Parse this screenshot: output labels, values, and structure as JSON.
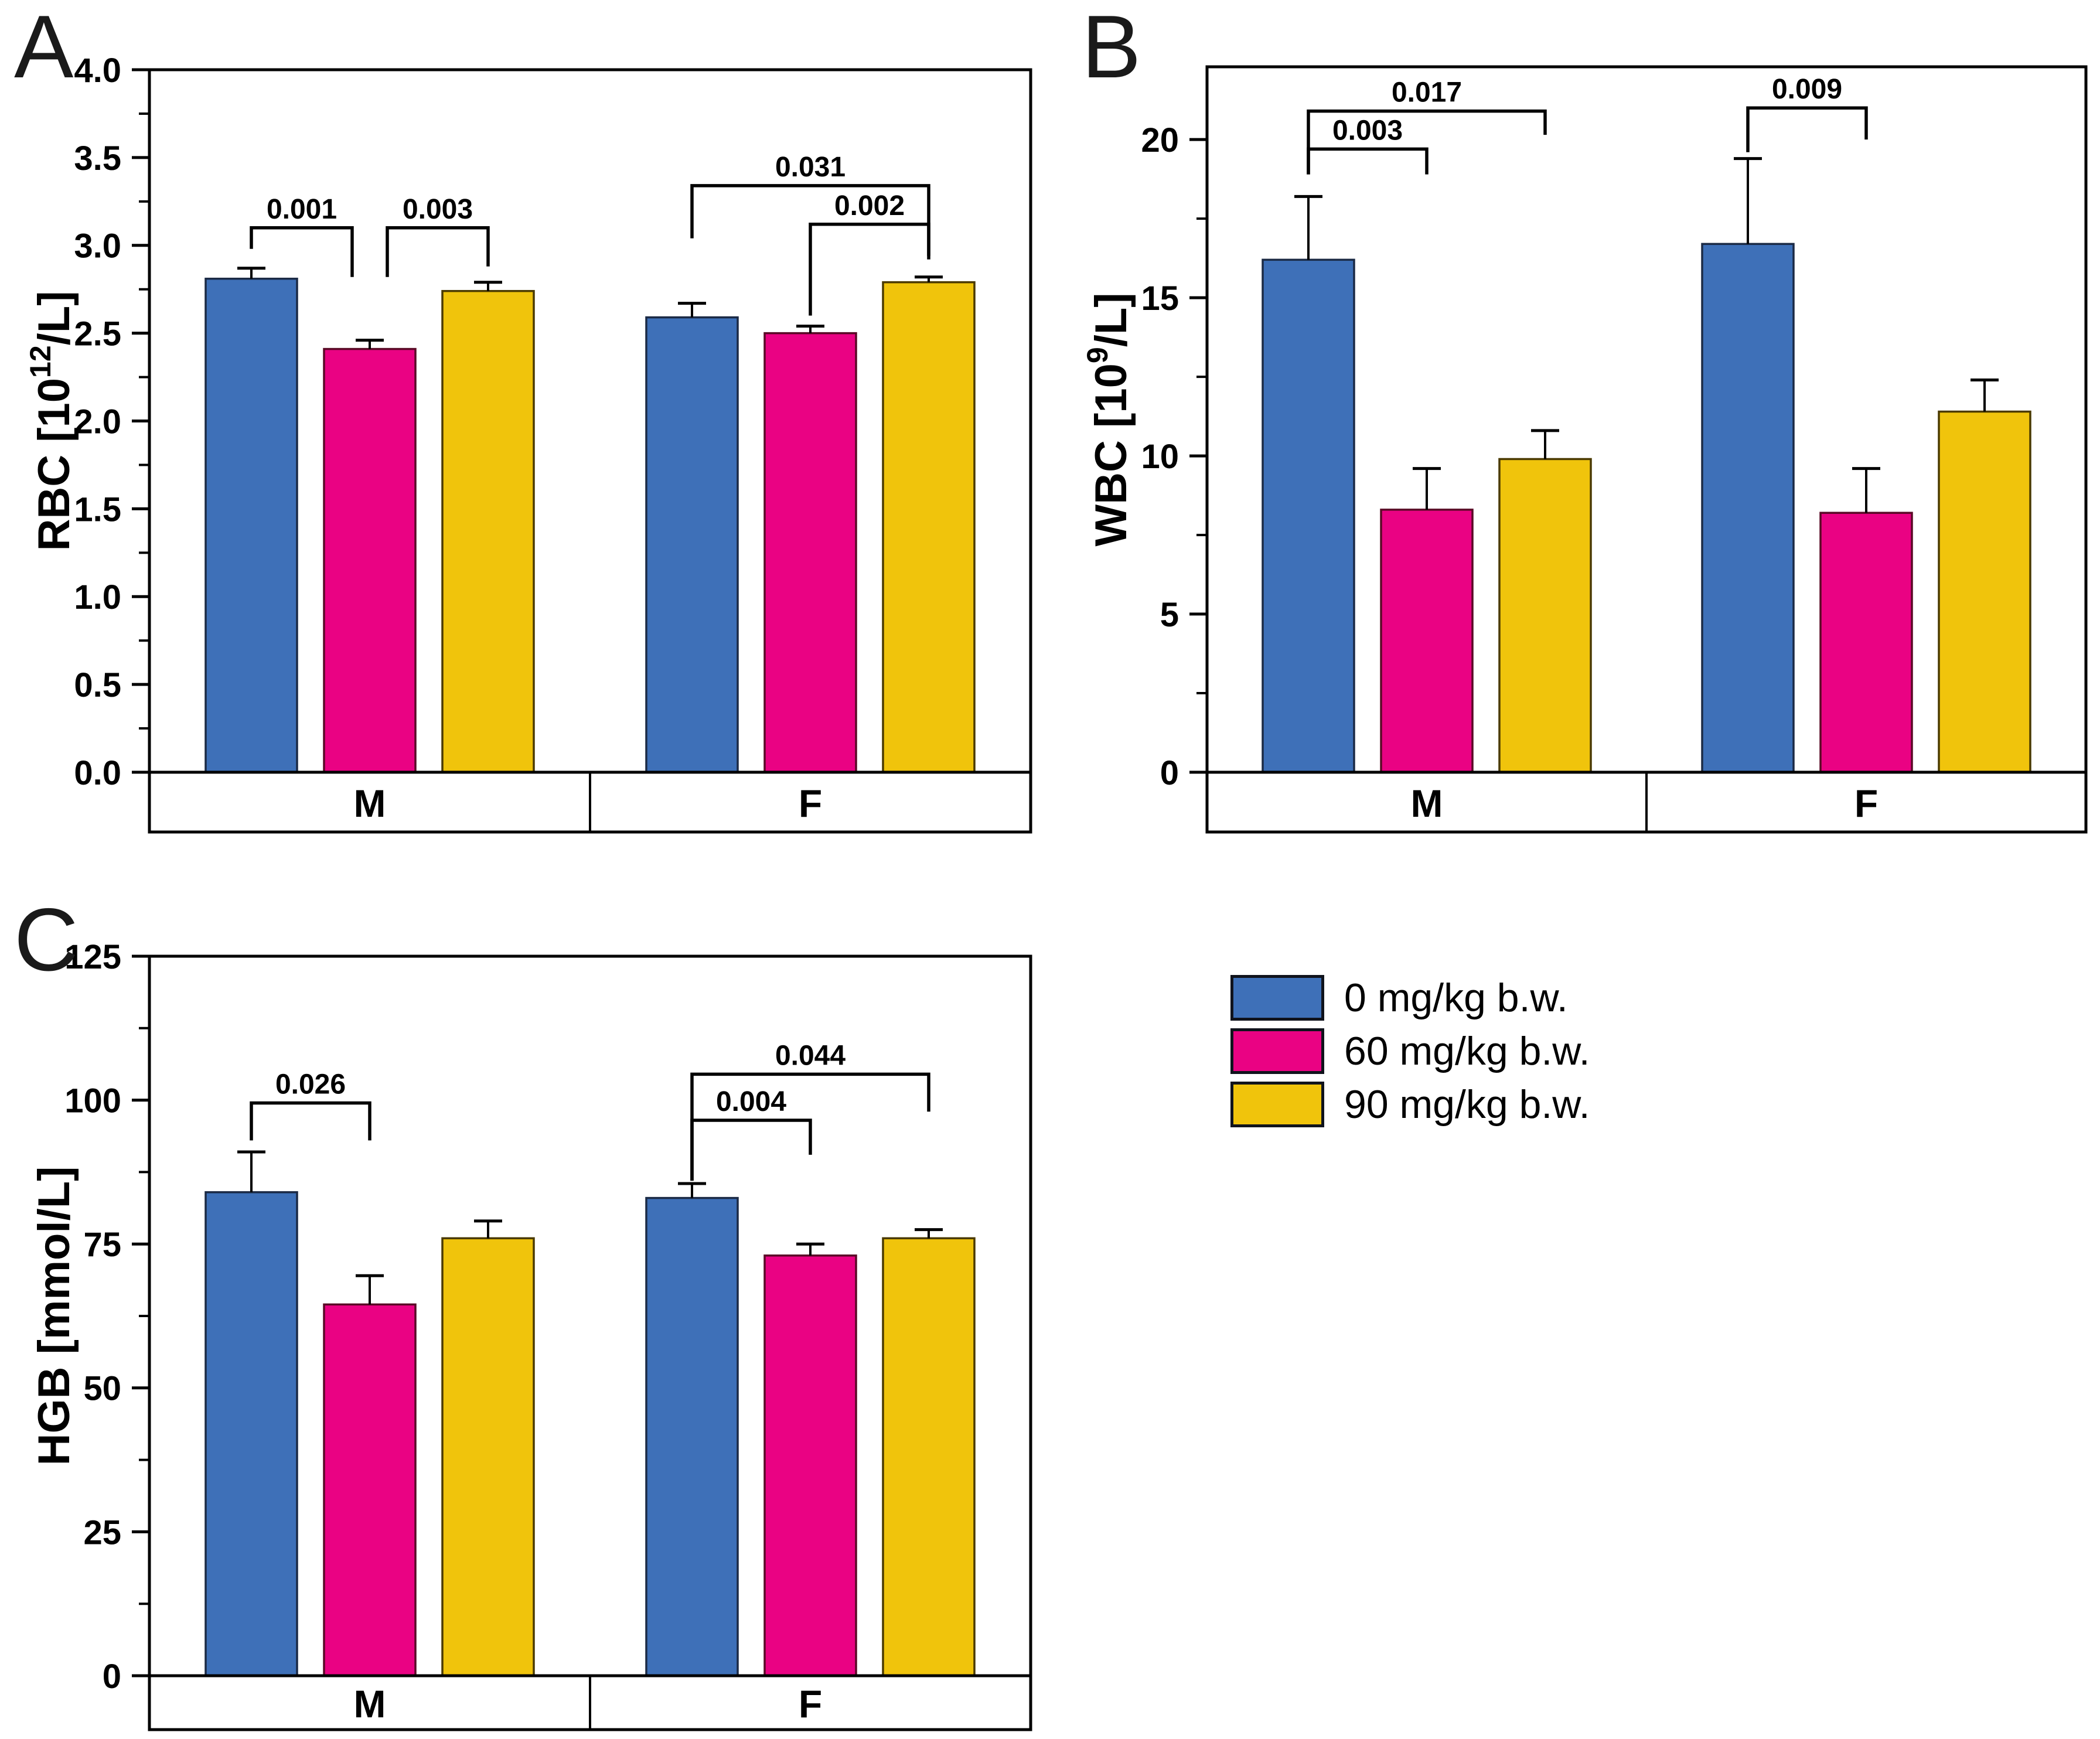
{
  "panels": [
    {
      "letter": "A"
    },
    {
      "letter": "B"
    },
    {
      "letter": "C"
    }
  ],
  "legend": {
    "items": [
      {
        "label": "0 mg/kg b.w.",
        "color": "#3E70B8",
        "border": "#10131C"
      },
      {
        "label": "60 mg/kg b.w.",
        "color": "#EA0283",
        "border": "#10131C"
      },
      {
        "label": "90 mg/kg b.w.",
        "color": "#F0C40C",
        "border": "#10131C"
      }
    ]
  },
  "chart_data": [
    {
      "type": "bar",
      "panel": "A",
      "name": "RBC",
      "ylabel": {
        "prefix": "RBC [10",
        "sup": "12",
        "suffix": "/L]"
      },
      "ylim": [
        0,
        4.0
      ],
      "ytick_step": 0.5,
      "yminor_step": 0.25,
      "ytick_decimals": 1,
      "grid": false,
      "categories": [
        "M",
        "F"
      ],
      "series": [
        {
          "name": "0 mg/kg b.w.",
          "color": "#3E70B8",
          "edge": "#1B2A45",
          "values": [
            2.81,
            2.59
          ],
          "errors": [
            0.06,
            0.08
          ]
        },
        {
          "name": "60 mg/kg b.w.",
          "color": "#EA0283",
          "edge": "#5A0A26",
          "values": [
            2.41,
            2.5
          ],
          "errors": [
            0.05,
            0.04
          ]
        },
        {
          "name": "90 mg/kg b.w.",
          "color": "#F0C40C",
          "edge": "#4A3A00",
          "values": [
            2.74,
            2.79
          ],
          "errors": [
            0.05,
            0.03
          ]
        }
      ],
      "brackets": [
        {
          "group": 0,
          "from": 0,
          "to": 1,
          "label": "0.001",
          "y": 3.1,
          "drop_from": 0.12,
          "drop_to": 0.28,
          "to_off": -30
        },
        {
          "group": 0,
          "from": 1,
          "to": 2,
          "label": "0.003",
          "y": 3.1,
          "drop_from": 0.28,
          "drop_to": 0.22,
          "from_off": 30
        },
        {
          "group": 1,
          "from": 0,
          "to": 2,
          "label": "0.031",
          "y": 3.34,
          "drop_from": 0.3,
          "drop_to": 0.42
        },
        {
          "group": 1,
          "from": 1,
          "to": 2,
          "label": "0.002",
          "y": 3.12,
          "drop_from": 0.52,
          "drop_to": 0.18
        }
      ]
    },
    {
      "type": "bar",
      "panel": "B",
      "name": "WBC",
      "ylabel": {
        "prefix": "WBC [10",
        "sup": "9",
        "suffix": "/L]"
      },
      "ylim": [
        0,
        22.3
      ],
      "ytick_step": 5,
      "yminor_step": 2.5,
      "ytick_decimals": 0,
      "grid": false,
      "categories": [
        "M",
        "F"
      ],
      "series": [
        {
          "name": "0 mg/kg b.w.",
          "color": "#3E70B8",
          "edge": "#1B2A45",
          "values": [
            16.2,
            16.7
          ],
          "errors": [
            2.0,
            2.7
          ]
        },
        {
          "name": "60 mg/kg b.w.",
          "color": "#EA0283",
          "edge": "#5A0A26",
          "values": [
            8.3,
            8.2
          ],
          "errors": [
            1.3,
            1.4
          ]
        },
        {
          "name": "90 mg/kg b.w.",
          "color": "#F0C40C",
          "edge": "#4A3A00",
          "values": [
            9.9,
            11.4
          ],
          "errors": [
            0.9,
            1.0
          ]
        }
      ],
      "brackets": [
        {
          "group": 0,
          "from": 0,
          "to": 1,
          "label": "0.003",
          "y": 19.7,
          "drop_from": 0.8,
          "drop_to": 0.8
        },
        {
          "group": 0,
          "from": 0,
          "to": 2,
          "label": "0.017",
          "y": 20.9,
          "drop_from": 2.0,
          "drop_to": 0.75
        },
        {
          "group": 1,
          "from": 0,
          "to": 1,
          "label": "0.009",
          "y": 21.0,
          "drop_from": 1.4,
          "drop_to": 1.0
        }
      ]
    },
    {
      "type": "bar",
      "panel": "C",
      "name": "HGB",
      "ylabel": {
        "prefix": "HGB [mmol/L]",
        "sup": "",
        "suffix": ""
      },
      "ylim": [
        0,
        125
      ],
      "ytick_step": 25,
      "yminor_step": 12.5,
      "ytick_decimals": 0,
      "grid": false,
      "categories": [
        "M",
        "F"
      ],
      "series": [
        {
          "name": "0 mg/kg b.w.",
          "color": "#3E70B8",
          "edge": "#1B2A45",
          "values": [
            84,
            83
          ],
          "errors": [
            7,
            2.5
          ]
        },
        {
          "name": "60 mg/kg b.w.",
          "color": "#EA0283",
          "edge": "#5A0A26",
          "values": [
            64.5,
            73
          ],
          "errors": [
            5,
            2
          ]
        },
        {
          "name": "90 mg/kg b.w.",
          "color": "#F0C40C",
          "edge": "#4A3A00",
          "values": [
            76,
            76
          ],
          "errors": [
            3,
            1.5
          ]
        }
      ],
      "brackets": [
        {
          "group": 0,
          "from": 0,
          "to": 1,
          "label": "0.026",
          "y": 99.5,
          "drop_from": 6.5,
          "drop_to": 6.5
        },
        {
          "group": 1,
          "from": 0,
          "to": 1,
          "label": "0.004",
          "y": 96.5,
          "drop_from": 10.5,
          "drop_to": 6.0
        },
        {
          "group": 1,
          "from": 0,
          "to": 2,
          "label": "0.044",
          "y": 104.5,
          "drop_from": 18.5,
          "drop_to": 6.5
        }
      ]
    }
  ]
}
